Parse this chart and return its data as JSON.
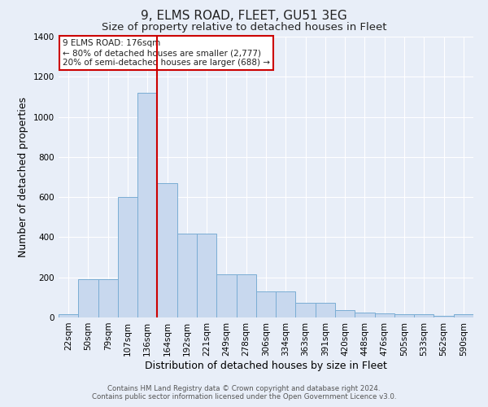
{
  "title": "9, ELMS ROAD, FLEET, GU51 3EG",
  "subtitle": "Size of property relative to detached houses in Fleet",
  "xlabel": "Distribution of detached houses by size in Fleet",
  "ylabel": "Number of detached properties",
  "footer_line1": "Contains HM Land Registry data © Crown copyright and database right 2024.",
  "footer_line2": "Contains public sector information licensed under the Open Government Licence v3.0.",
  "annotation_line1": "9 ELMS ROAD: 176sqm",
  "annotation_line2": "← 80% of detached houses are smaller (2,777)",
  "annotation_line3": "20% of semi-detached houses are larger (688) →",
  "bar_labels": [
    "22sqm",
    "50sqm",
    "79sqm",
    "107sqm",
    "136sqm",
    "164sqm",
    "192sqm",
    "221sqm",
    "249sqm",
    "278sqm",
    "306sqm",
    "334sqm",
    "363sqm",
    "391sqm",
    "420sqm",
    "448sqm",
    "476sqm",
    "505sqm",
    "533sqm",
    "562sqm",
    "590sqm"
  ],
  "bar_values": [
    15,
    190,
    190,
    600,
    1120,
    670,
    420,
    420,
    215,
    215,
    130,
    130,
    75,
    75,
    35,
    25,
    20,
    15,
    15,
    10,
    15
  ],
  "bar_color": "#c8d8ee",
  "bar_edge_color": "#7aadd4",
  "vline_x_after_index": 4,
  "vline_color": "#cc0000",
  "bg_color": "#e8eef8",
  "plot_bg_color": "#e8eef8",
  "grid_color": "#ffffff",
  "ylim": [
    0,
    1400
  ],
  "yticks": [
    0,
    200,
    400,
    600,
    800,
    1000,
    1200,
    1400
  ],
  "title_fontsize": 11,
  "subtitle_fontsize": 9.5,
  "xlabel_fontsize": 9,
  "ylabel_fontsize": 9,
  "tick_fontsize": 7.5,
  "annotation_box_color": "#ffffff",
  "annotation_edge_color": "#cc0000",
  "annotation_fontsize": 7.5
}
